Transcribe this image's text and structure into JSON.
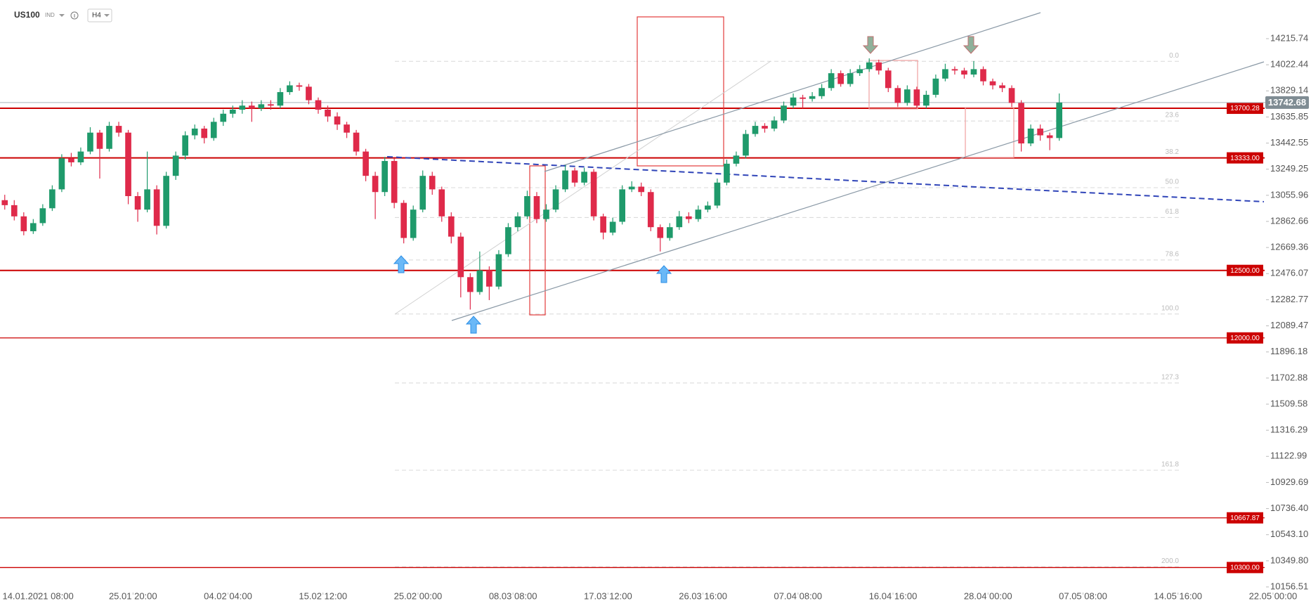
{
  "header": {
    "symbol": "US100",
    "market": "IND",
    "interval": "H4"
  },
  "chart_data": {
    "type": "candlestick",
    "up_color": "#1f9a6b",
    "down_color": "#df2a4a",
    "xlim": [
      -0.5,
      137.5
    ],
    "xticks": [
      {
        "value": 3.5,
        "label": "14.01.2021 08:00"
      },
      {
        "value": 13.5,
        "label": "25.01 20:00"
      },
      {
        "value": 23.5,
        "label": "04.02 04:00"
      },
      {
        "value": 33.5,
        "label": "15.02 12:00"
      },
      {
        "value": 43.5,
        "label": "25.02 00:00"
      },
      {
        "value": 53.5,
        "label": "08.03 08:00"
      },
      {
        "value": 63.5,
        "label": "17.03 12:00"
      },
      {
        "value": 73.5,
        "label": "26.03 16:00"
      },
      {
        "value": 83.5,
        "label": "07.04 08:00"
      },
      {
        "value": 93.5,
        "label": "16.04 16:00"
      },
      {
        "value": 103.5,
        "label": "28.04 00:00"
      },
      {
        "value": 113.5,
        "label": "07.05 08:00"
      },
      {
        "value": 123.5,
        "label": "14.05 16:00"
      },
      {
        "value": 133.5,
        "label": "22.05 00:00"
      }
    ],
    "ylim": [
      10114.88,
      14501.97
    ],
    "yticks": [
      10156.51,
      {
        "value": 10349.8,
        "label": "10349.80"
      },
      {
        "value": 10543.1,
        "label": "10543.10"
      },
      {
        "value": 10736.4,
        "label": "10736.40"
      },
      10929.69,
      11122.99,
      11316.29,
      11509.58,
      11702.88,
      11896.18,
      12089.47,
      12282.77,
      12476.07,
      12669.36,
      12862.66,
      13055.96,
      13249.25,
      13442.55,
      13635.85,
      13829.14,
      14022.44,
      14215.74
    ],
    "last_price": 13742.68,
    "last_price_color": "#7f8c93",
    "level_color": "#cc0000",
    "levels": [
      13700.28,
      {
        "value": 13333,
        "label": "13333.00"
      },
      {
        "value": 12500,
        "label": "12500.00"
      },
      {
        "value": 12000,
        "label": "12000.00"
      },
      10667.87,
      {
        "value": 10300,
        "label": "10300.00"
      }
    ],
    "fibonacci": {
      "price_0": 14048,
      "price_100": 12177,
      "levels": [
        {
          "value": 0,
          "label": "0.0"
        },
        23.6,
        38.2,
        {
          "value": 50,
          "label": "50.0"
        },
        61.8,
        78.6,
        {
          "value": 100,
          "label": "100.0"
        },
        127.3,
        161.8,
        {
          "value": 200,
          "label": "200.0"
        }
      ]
    },
    "candles": [
      [
        13020,
        13060,
        12950,
        12983
      ],
      [
        12983,
        13020,
        12870,
        12900
      ],
      [
        12900,
        12930,
        12760,
        12790
      ],
      [
        12790,
        12880,
        12770,
        12850
      ],
      [
        12850,
        12990,
        12830,
        12960
      ],
      [
        12960,
        13130,
        12940,
        13100
      ],
      [
        13100,
        13360,
        13080,
        13330
      ],
      [
        13330,
        13370,
        13270,
        13300
      ],
      [
        13300,
        13410,
        13280,
        13380
      ],
      [
        13380,
        13560,
        13360,
        13520
      ],
      [
        13520,
        13540,
        13180,
        13400
      ],
      [
        13400,
        13600,
        13380,
        13570
      ],
      [
        13570,
        13600,
        13490,
        13520
      ],
      [
        13520,
        13540,
        12990,
        13050
      ],
      [
        13050,
        13080,
        12860,
        12950
      ],
      [
        12950,
        13380,
        12930,
        13100
      ],
      [
        13100,
        13130,
        12766,
        12830
      ],
      [
        12830,
        13230,
        12810,
        13200
      ],
      [
        13200,
        13380,
        13170,
        13350
      ],
      [
        13350,
        13530,
        13320,
        13500
      ],
      [
        13500,
        13580,
        13470,
        13550
      ],
      [
        13550,
        13570,
        13440,
        13480
      ],
      [
        13480,
        13630,
        13460,
        13600
      ],
      [
        13600,
        13690,
        13570,
        13660
      ],
      [
        13660,
        13720,
        13630,
        13690
      ],
      [
        13690,
        13760,
        13660,
        13720
      ],
      [
        13720,
        13750,
        13600,
        13700
      ],
      [
        13700,
        13760,
        13680,
        13730
      ],
      [
        13730,
        13760,
        13690,
        13720
      ],
      [
        13720,
        13850,
        13700,
        13820
      ],
      [
        13820,
        13900,
        13800,
        13870
      ],
      [
        13870,
        13890,
        13830,
        13860
      ],
      [
        13860,
        13880,
        13730,
        13760
      ],
      [
        13760,
        13780,
        13660,
        13690
      ],
      [
        13690,
        13720,
        13600,
        13640
      ],
      [
        13640,
        13670,
        13540,
        13580
      ],
      [
        13580,
        13600,
        13480,
        13520
      ],
      [
        13520,
        13540,
        13350,
        13380
      ],
      [
        13380,
        13400,
        13160,
        13200
      ],
      [
        13200,
        13230,
        12880,
        13080
      ],
      [
        13080,
        13340,
        13050,
        13310
      ],
      [
        13310,
        13330,
        12960,
        13000
      ],
      [
        13000,
        13020,
        12700,
        12740
      ],
      [
        12740,
        12980,
        12720,
        12950
      ],
      [
        12950,
        13240,
        12930,
        13200
      ],
      [
        13200,
        13230,
        13060,
        13100
      ],
      [
        13100,
        13120,
        12860,
        12900
      ],
      [
        12900,
        12930,
        12700,
        12750
      ],
      [
        12750,
        12780,
        12300,
        12450
      ],
      [
        12450,
        12480,
        12210,
        12340
      ],
      [
        12340,
        12640,
        12320,
        12500
      ],
      [
        12500,
        12530,
        12280,
        12380
      ],
      [
        12380,
        12650,
        12360,
        12620
      ],
      [
        12620,
        12850,
        12600,
        12820
      ],
      [
        12820,
        12930,
        12790,
        12900
      ],
      [
        12900,
        13090,
        12880,
        13050
      ],
      [
        13050,
        13080,
        12850,
        12880
      ],
      [
        12880,
        12990,
        12860,
        12950
      ],
      [
        12950,
        13130,
        12930,
        13100
      ],
      [
        13100,
        13280,
        13080,
        13240
      ],
      [
        13240,
        13260,
        13120,
        13150
      ],
      [
        13150,
        13260,
        13130,
        13230
      ],
      [
        13230,
        13250,
        12870,
        12900
      ],
      [
        12900,
        12920,
        12730,
        12780
      ],
      [
        12780,
        12890,
        12760,
        12860
      ],
      [
        12860,
        13130,
        12840,
        13100
      ],
      [
        13100,
        13160,
        13080,
        13120
      ],
      [
        13120,
        13150,
        13050,
        13080
      ],
      [
        13080,
        13100,
        12790,
        12820
      ],
      [
        12820,
        12840,
        12640,
        12740
      ],
      [
        12740,
        12850,
        12720,
        12820
      ],
      [
        12820,
        12940,
        12800,
        12900
      ],
      [
        12900,
        12930,
        12850,
        12880
      ],
      [
        12880,
        12980,
        12860,
        12950
      ],
      [
        12950,
        13010,
        12930,
        12980
      ],
      [
        12980,
        13180,
        12960,
        13150
      ],
      [
        13150,
        13320,
        13130,
        13290
      ],
      [
        13290,
        13380,
        13270,
        13350
      ],
      [
        13350,
        13540,
        13330,
        13510
      ],
      [
        13510,
        13600,
        13490,
        13570
      ],
      [
        13570,
        13590,
        13520,
        13550
      ],
      [
        13550,
        13640,
        13530,
        13610
      ],
      [
        13610,
        13750,
        13590,
        13720
      ],
      [
        13720,
        13810,
        13700,
        13780
      ],
      [
        13780,
        13800,
        13700,
        13770
      ],
      [
        13770,
        13820,
        13750,
        13790
      ],
      [
        13790,
        13880,
        13770,
        13850
      ],
      [
        13850,
        13990,
        13830,
        13960
      ],
      [
        13960,
        13980,
        13860,
        13880
      ],
      [
        13880,
        13990,
        13860,
        13960
      ],
      [
        13960,
        14020,
        13940,
        13990
      ],
      [
        13990,
        14070,
        13970,
        14040
      ],
      [
        14040,
        14060,
        13950,
        13980
      ],
      [
        13980,
        14000,
        13820,
        13850
      ],
      [
        13850,
        13870,
        13710,
        13740
      ],
      [
        13740,
        13870,
        13720,
        13840
      ],
      [
        13840,
        13860,
        13700,
        13720
      ],
      [
        13720,
        13830,
        13700,
        13800
      ],
      [
        13800,
        13950,
        13780,
        13920
      ],
      [
        13920,
        14030,
        13900,
        13990
      ],
      [
        13990,
        14010,
        13950,
        13980
      ],
      [
        13980,
        14000,
        13920,
        13950
      ],
      [
        13950,
        14050,
        13930,
        13990
      ],
      [
        13990,
        14010,
        13870,
        13900
      ],
      [
        13900,
        13920,
        13840,
        13870
      ],
      [
        13870,
        13890,
        13820,
        13850
      ],
      [
        13850,
        13870,
        13710,
        13740
      ],
      [
        13740,
        13760,
        13380,
        13440
      ],
      [
        13440,
        13580,
        13420,
        13550
      ],
      [
        13550,
        13580,
        13460,
        13500
      ],
      [
        13500,
        13520,
        13390,
        13480
      ],
      [
        13480,
        13810,
        13460,
        13742.68
      ]
    ]
  }
}
